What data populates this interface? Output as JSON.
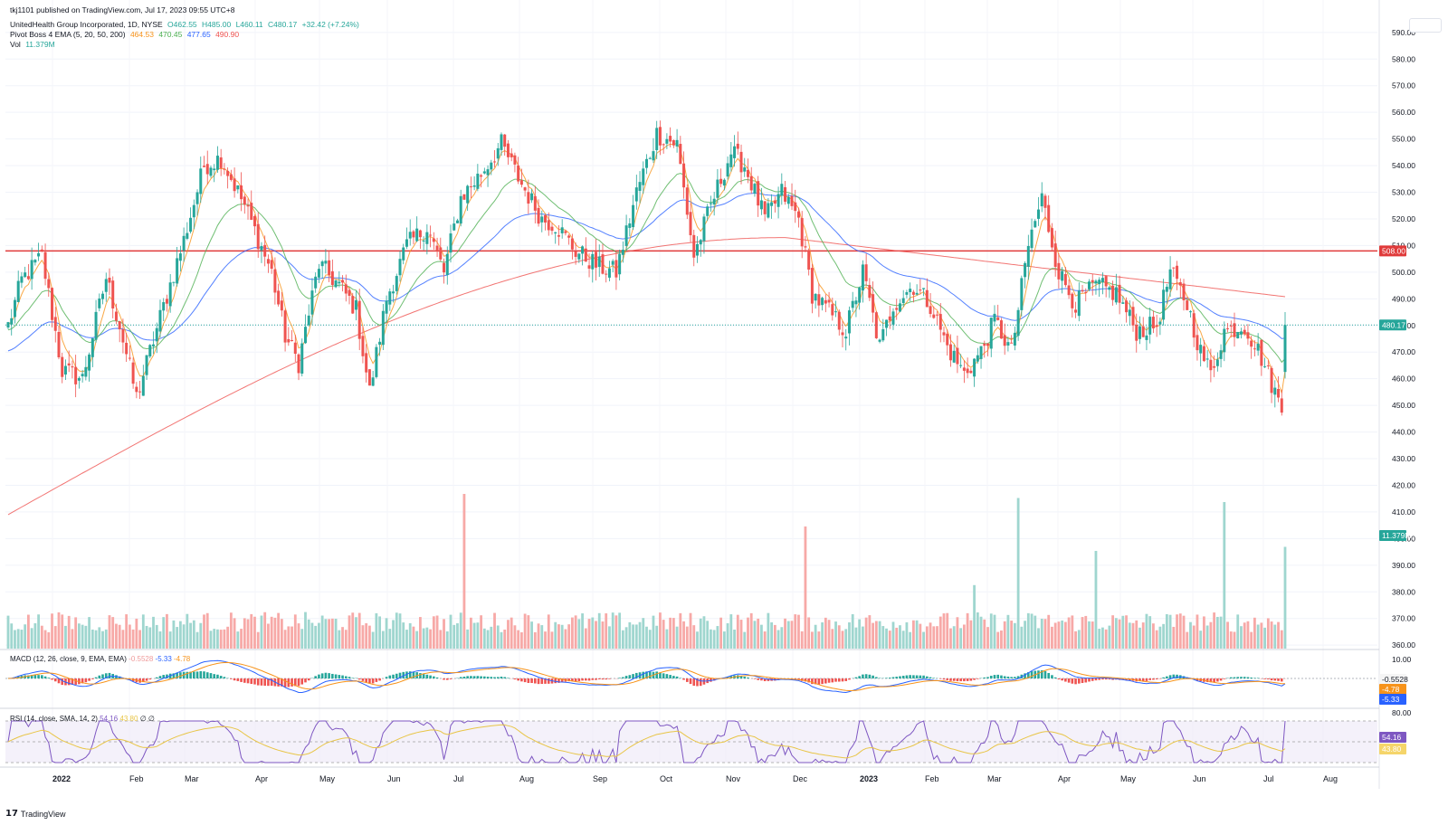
{
  "publisher_line": "tkj1101 published on TradingView.com, Jul 17, 2023 09:55 UTC+8",
  "symbol_line": {
    "title": "UnitedHealth Group Incorporated, 1D, NYSE",
    "open": "O462.55",
    "high": "H485.00",
    "low": "L460.11",
    "close": "C480.17",
    "change": "+32.42 (+7.24%)"
  },
  "ema_line": {
    "label": "Pivot Boss 4 EMA (5, 20, 50, 200)",
    "values": [
      "464.53",
      "470.45",
      "477.65",
      "490.90"
    ]
  },
  "vol_line": {
    "label": "Vol",
    "value": "11.379M"
  },
  "macd_label": {
    "title": "MACD (12, 26, close, 9, EMA, EMA)",
    "hist": "-0.5528",
    "macd": "-5.33",
    "signal": "-4.78"
  },
  "rsi_label": {
    "title": "RSI (14, close, SMA, 14, 2)",
    "rsi": "54.16",
    "sma": "43.80",
    "extra": "∅ ∅"
  },
  "brand": "TradingView",
  "colors": {
    "up": "#26a69a",
    "down": "#ef5350",
    "ema5": "#f7931a",
    "ema20": "#4caf50",
    "ema50": "#2962ff",
    "ema200": "#ef5350",
    "hline": "#e03a3a",
    "rsi": "#7e57c2",
    "rsi_ma": "#e8c547"
  },
  "chart_data": {
    "type": "candlestick",
    "title": "UnitedHealth Group Incorporated, 1D, NYSE",
    "x_labels": [
      "2022",
      "Feb",
      "Mar",
      "Apr",
      "May",
      "Jun",
      "Jul",
      "Aug",
      "Sep",
      "Oct",
      "Nov",
      "Dec",
      "2023",
      "Feb",
      "Mar",
      "Apr",
      "May",
      "Jun",
      "Jul",
      "Aug"
    ],
    "y_ticks": [
      "590.00",
      "580.00",
      "570.00",
      "560.00",
      "550.00",
      "540.00",
      "530.00",
      "520.00",
      "510.00",
      "500.00",
      "490.00",
      "480.00",
      "470.00",
      "460.00",
      "450.00",
      "440.00",
      "430.00",
      "420.00",
      "410.00",
      "400.00",
      "390.00",
      "380.00",
      "370.00",
      "360.00"
    ],
    "y_range": [
      357,
      593
    ],
    "horizontal_line": {
      "value": 508.0,
      "label": "508.00"
    },
    "last_close_label": "480.17",
    "volume_label": "11.379M",
    "price_anchors": [
      {
        "x": 0,
        "p": 480
      },
      {
        "x": 4,
        "p": 497
      },
      {
        "x": 10,
        "p": 506
      },
      {
        "x": 16,
        "p": 463
      },
      {
        "x": 22,
        "p": 460
      },
      {
        "x": 29,
        "p": 498
      },
      {
        "x": 33,
        "p": 480
      },
      {
        "x": 38,
        "p": 453
      },
      {
        "x": 45,
        "p": 483
      },
      {
        "x": 52,
        "p": 512
      },
      {
        "x": 58,
        "p": 540
      },
      {
        "x": 63,
        "p": 543
      },
      {
        "x": 70,
        "p": 525
      },
      {
        "x": 78,
        "p": 500
      },
      {
        "x": 82,
        "p": 476
      },
      {
        "x": 86,
        "p": 466
      },
      {
        "x": 92,
        "p": 503
      },
      {
        "x": 98,
        "p": 495
      },
      {
        "x": 103,
        "p": 486
      },
      {
        "x": 107,
        "p": 455
      },
      {
        "x": 112,
        "p": 490
      },
      {
        "x": 118,
        "p": 510
      },
      {
        "x": 124,
        "p": 517
      },
      {
        "x": 129,
        "p": 500
      },
      {
        "x": 134,
        "p": 528
      },
      {
        "x": 140,
        "p": 537
      },
      {
        "x": 146,
        "p": 548
      },
      {
        "x": 152,
        "p": 533
      },
      {
        "x": 158,
        "p": 520
      },
      {
        "x": 162,
        "p": 518
      },
      {
        "x": 168,
        "p": 508
      },
      {
        "x": 175,
        "p": 502
      },
      {
        "x": 180,
        "p": 500
      },
      {
        "x": 186,
        "p": 530
      },
      {
        "x": 192,
        "p": 552
      },
      {
        "x": 198,
        "p": 548
      },
      {
        "x": 203,
        "p": 506
      },
      {
        "x": 208,
        "p": 525
      },
      {
        "x": 214,
        "p": 545
      },
      {
        "x": 218,
        "p": 540
      },
      {
        "x": 224,
        "p": 520
      },
      {
        "x": 229,
        "p": 530
      },
      {
        "x": 234,
        "p": 520
      },
      {
        "x": 238,
        "p": 492
      },
      {
        "x": 243,
        "p": 485
      },
      {
        "x": 248,
        "p": 478
      },
      {
        "x": 253,
        "p": 500
      },
      {
        "x": 258,
        "p": 472
      },
      {
        "x": 262,
        "p": 488
      },
      {
        "x": 268,
        "p": 495
      },
      {
        "x": 273,
        "p": 488
      },
      {
        "x": 278,
        "p": 472
      },
      {
        "x": 283,
        "p": 462
      },
      {
        "x": 288,
        "p": 470
      },
      {
        "x": 292,
        "p": 482
      },
      {
        "x": 297,
        "p": 470
      },
      {
        "x": 302,
        "p": 510
      },
      {
        "x": 306,
        "p": 528
      },
      {
        "x": 311,
        "p": 500
      },
      {
        "x": 316,
        "p": 488
      },
      {
        "x": 322,
        "p": 495
      },
      {
        "x": 328,
        "p": 492
      },
      {
        "x": 334,
        "p": 478
      },
      {
        "x": 340,
        "p": 480
      },
      {
        "x": 344,
        "p": 500
      },
      {
        "x": 349,
        "p": 488
      },
      {
        "x": 353,
        "p": 470
      },
      {
        "x": 356,
        "p": 462
      },
      {
        "x": 360,
        "p": 478
      },
      {
        "x": 366,
        "p": 480
      },
      {
        "x": 371,
        "p": 468
      },
      {
        "x": 375,
        "p": 455
      },
      {
        "x": 377,
        "p": 448
      },
      {
        "x": 378,
        "p": 480.17
      }
    ]
  }
}
